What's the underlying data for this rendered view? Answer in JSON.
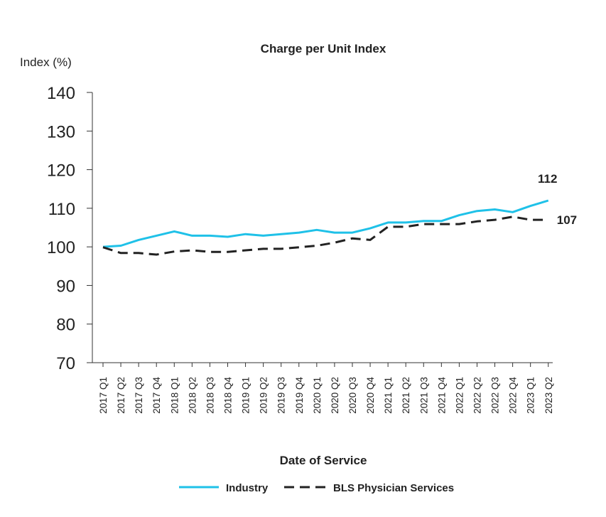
{
  "chart_data": {
    "type": "line",
    "title": "Charge per Unit Index",
    "ylabel": "Index (%)",
    "xlabel": "Date of Service",
    "ylim": [
      70,
      140
    ],
    "yticks": [
      70,
      80,
      90,
      100,
      110,
      120,
      130,
      140
    ],
    "grid": false,
    "legend_position": "bottom",
    "categories": [
      "2017 Q1",
      "2017 Q2",
      "2017 Q3",
      "2017 Q4",
      "2018 Q1",
      "2018 Q2",
      "2018 Q3",
      "2018 Q4",
      "2019 Q1",
      "2019 Q2",
      "2019 Q3",
      "2019 Q4",
      "2020 Q1",
      "2020 Q2",
      "2020 Q3",
      "2020 Q4",
      "2021 Q1",
      "2021 Q2",
      "2021 Q3",
      "2021 Q4",
      "2022 Q1",
      "2022 Q2",
      "2022 Q3",
      "2022 Q4",
      "2023 Q1",
      "2023 Q2"
    ],
    "series": [
      {
        "name": "Industry",
        "color": "#1fc1e8",
        "style": "solid",
        "values": [
          100.0,
          100.3,
          101.8,
          102.9,
          104.0,
          102.9,
          102.9,
          102.6,
          103.3,
          102.9,
          103.3,
          103.7,
          104.4,
          103.7,
          103.7,
          104.8,
          106.3,
          106.3,
          106.7,
          106.7,
          108.2,
          109.3,
          109.7,
          109.0,
          110.6,
          112.0
        ],
        "end_label": "112"
      },
      {
        "name": "BLS Physician Services",
        "color": "#222222",
        "style": "dashed",
        "values": [
          99.9,
          98.4,
          98.4,
          98.0,
          98.8,
          99.1,
          98.7,
          98.7,
          99.1,
          99.5,
          99.5,
          99.9,
          100.3,
          101.1,
          102.2,
          101.8,
          105.2,
          105.2,
          105.9,
          105.9,
          105.9,
          106.6,
          107.0,
          107.8,
          107.0,
          107.0
        ],
        "end_label": "107"
      }
    ]
  }
}
